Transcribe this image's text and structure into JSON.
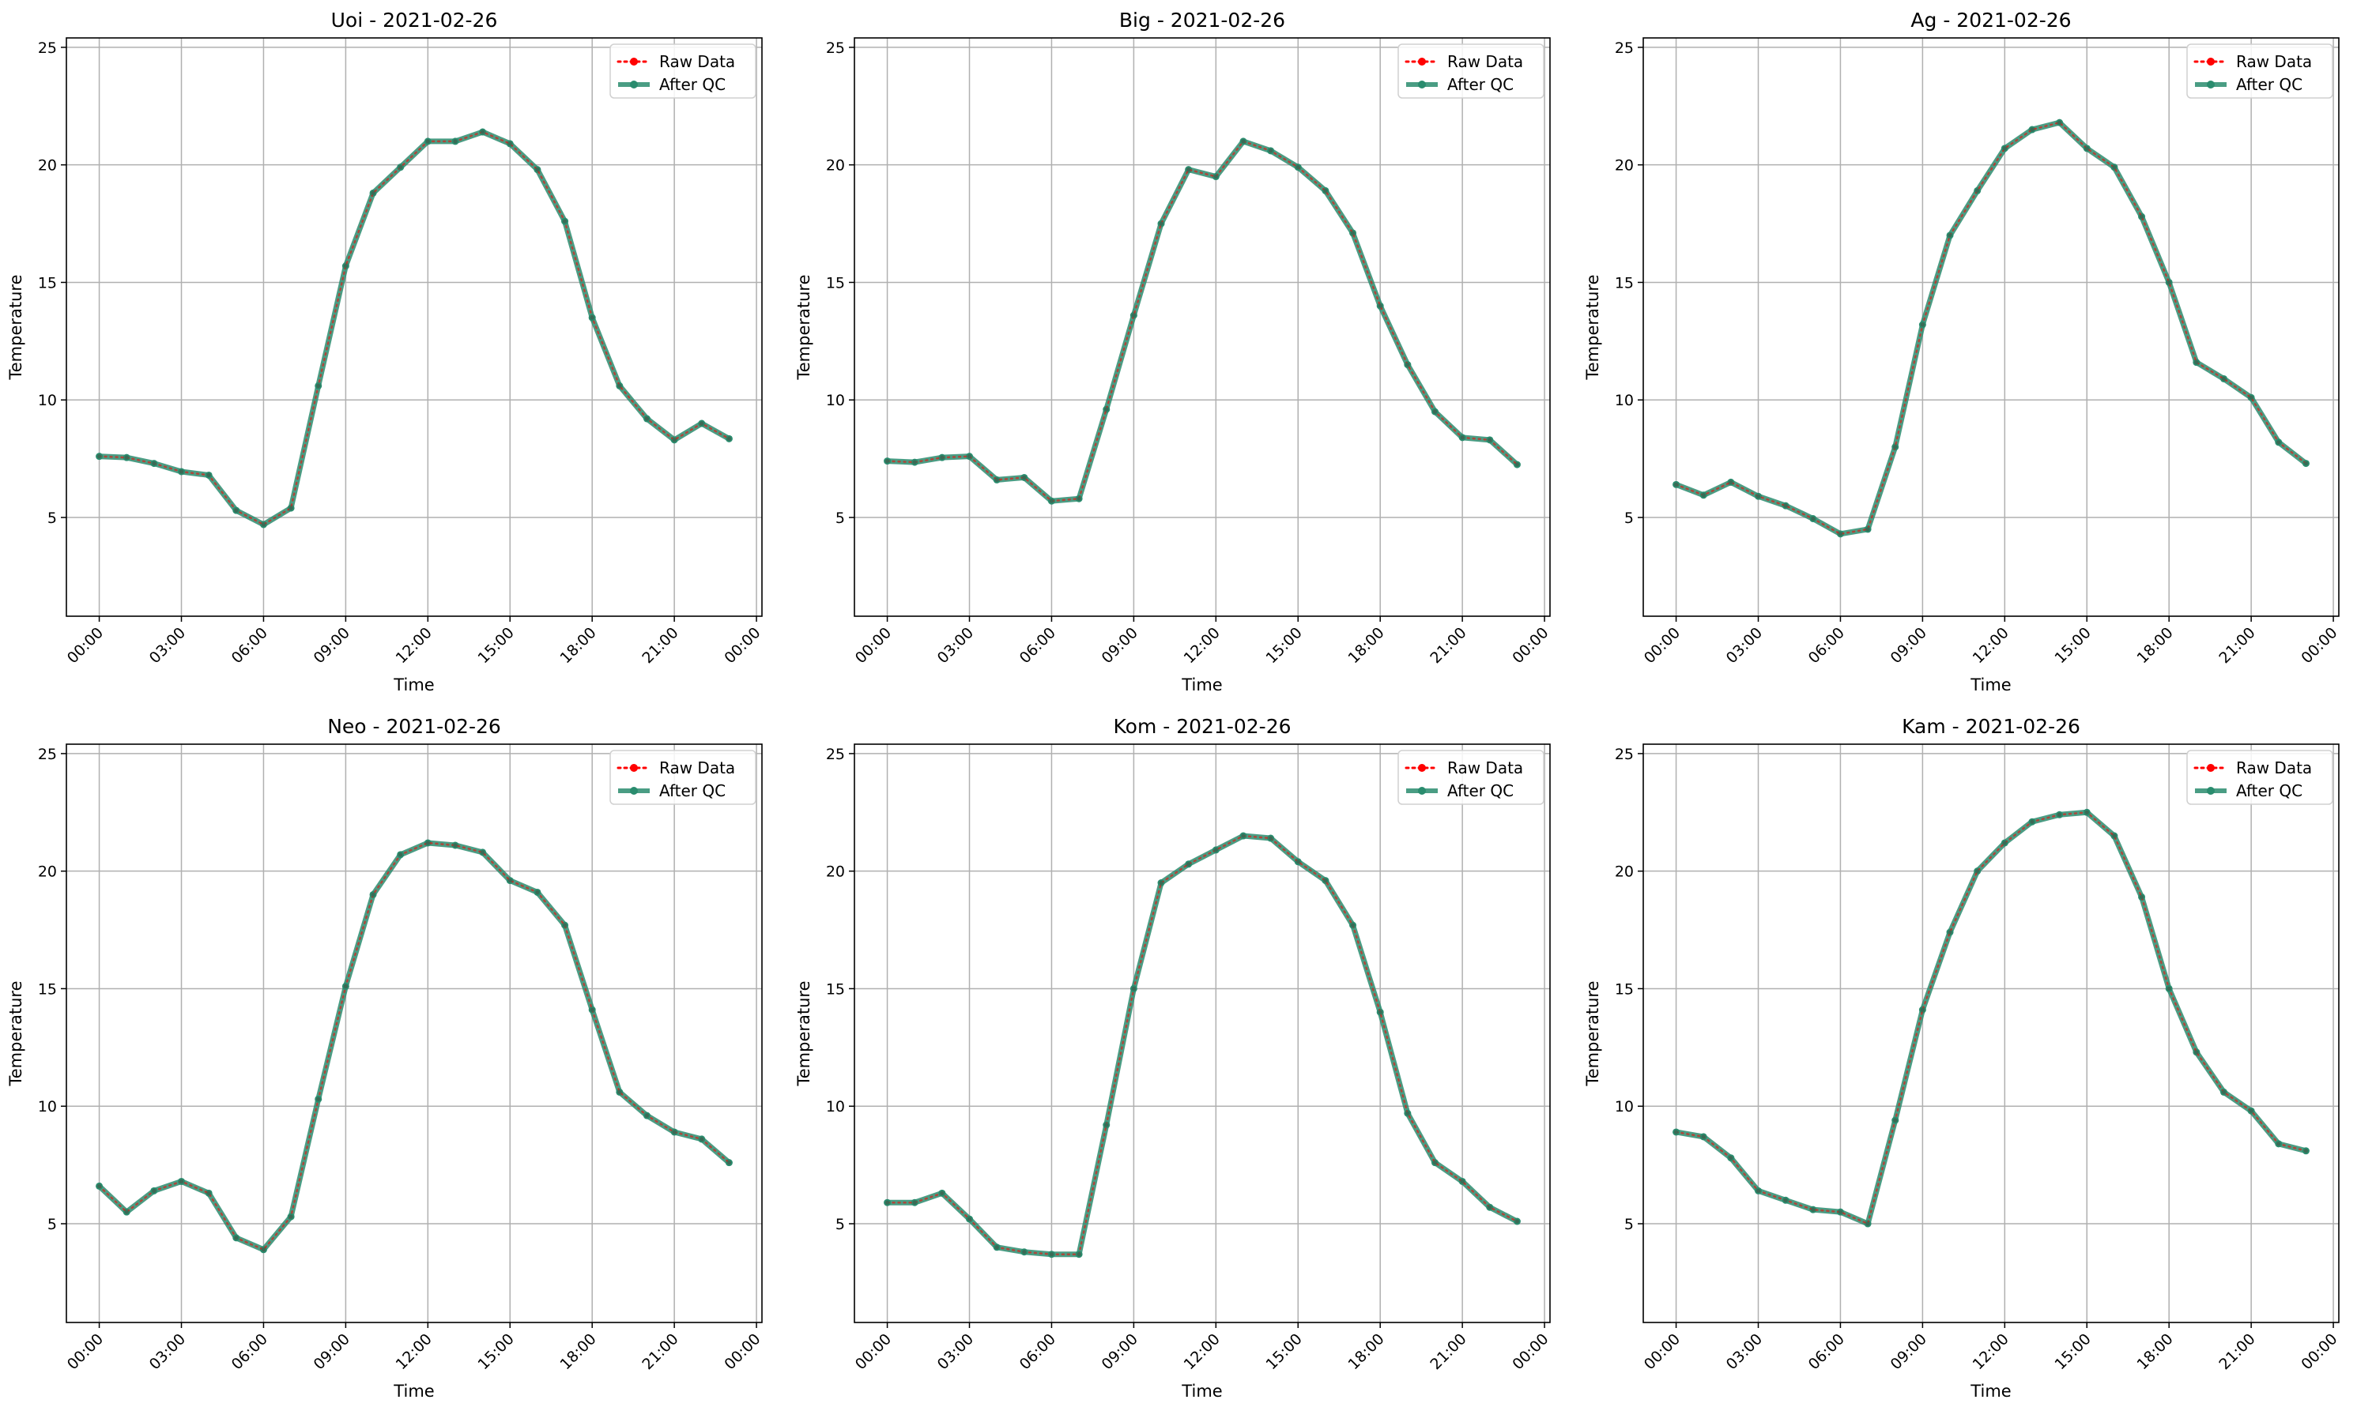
{
  "figure": {
    "legend_labels": [
      "Raw Data",
      "After QC"
    ],
    "colors": {
      "raw": "#ff0000",
      "qc": "#2a8c6e",
      "grid": "#b0b0b0"
    }
  },
  "chart_data": [
    {
      "type": "line",
      "title": "Uoi - 2021-02-26",
      "xlabel": "Time",
      "ylabel": "Temperature",
      "x_ticks": [
        "00:00",
        "03:00",
        "06:00",
        "09:00",
        "12:00",
        "15:00",
        "18:00",
        "21:00",
        "00:00"
      ],
      "y_ticks": [
        5,
        10,
        15,
        20,
        25
      ],
      "ylim": [
        0.8,
        25.4
      ],
      "xlim_hours": [
        -1.2,
        24.2
      ],
      "grid": true,
      "legend": "top-right",
      "hours": [
        0,
        1,
        2,
        3,
        4,
        5,
        6,
        7,
        8,
        9,
        10,
        11,
        12,
        13,
        14,
        15,
        16,
        17,
        18,
        19,
        20,
        21,
        22,
        23
      ],
      "series": [
        {
          "name": "Raw Data",
          "values": [
            7.6,
            7.55,
            7.3,
            6.95,
            6.8,
            5.3,
            4.7,
            5.4,
            10.6,
            15.7,
            18.8,
            19.9,
            21.0,
            21.0,
            21.4,
            20.9,
            19.8,
            17.6,
            13.5,
            10.6,
            9.2,
            8.3,
            9.0,
            8.35
          ]
        },
        {
          "name": "After QC",
          "values": [
            7.6,
            7.55,
            7.3,
            6.95,
            6.8,
            5.3,
            4.7,
            5.4,
            10.6,
            15.7,
            18.8,
            19.9,
            21.0,
            21.0,
            21.4,
            20.9,
            19.8,
            17.6,
            13.5,
            10.6,
            9.2,
            8.3,
            9.0,
            8.35
          ]
        }
      ]
    },
    {
      "type": "line",
      "title": "Big - 2021-02-26",
      "xlabel": "Time",
      "ylabel": "Temperature",
      "x_ticks": [
        "00:00",
        "03:00",
        "06:00",
        "09:00",
        "12:00",
        "15:00",
        "18:00",
        "21:00",
        "00:00"
      ],
      "y_ticks": [
        5,
        10,
        15,
        20,
        25
      ],
      "ylim": [
        0.8,
        25.4
      ],
      "xlim_hours": [
        -1.2,
        24.2
      ],
      "grid": true,
      "legend": "top-right",
      "hours": [
        0,
        1,
        2,
        3,
        4,
        5,
        6,
        7,
        8,
        9,
        10,
        11,
        12,
        13,
        14,
        15,
        16,
        17,
        18,
        19,
        20,
        21,
        22,
        23
      ],
      "series": [
        {
          "name": "Raw Data",
          "values": [
            7.4,
            7.35,
            7.55,
            7.6,
            6.6,
            6.7,
            5.7,
            5.8,
            9.6,
            13.6,
            17.5,
            19.8,
            19.5,
            21.0,
            20.6,
            19.9,
            18.9,
            17.1,
            14.0,
            11.5,
            9.5,
            8.4,
            8.3,
            7.25
          ]
        },
        {
          "name": "After QC",
          "values": [
            7.4,
            7.35,
            7.55,
            7.6,
            6.6,
            6.7,
            5.7,
            5.8,
            9.6,
            13.6,
            17.5,
            19.8,
            19.5,
            21.0,
            20.6,
            19.9,
            18.9,
            17.1,
            14.0,
            11.5,
            9.5,
            8.4,
            8.3,
            7.25
          ]
        }
      ]
    },
    {
      "type": "line",
      "title": "Ag - 2021-02-26",
      "xlabel": "Time",
      "ylabel": "Temperature",
      "x_ticks": [
        "00:00",
        "03:00",
        "06:00",
        "09:00",
        "12:00",
        "15:00",
        "18:00",
        "21:00",
        "00:00"
      ],
      "y_ticks": [
        5,
        10,
        15,
        20,
        25
      ],
      "ylim": [
        0.8,
        25.4
      ],
      "xlim_hours": [
        -1.2,
        24.2
      ],
      "grid": true,
      "legend": "top-right",
      "hours": [
        0,
        1,
        2,
        3,
        4,
        5,
        6,
        7,
        8,
        9,
        10,
        11,
        12,
        13,
        14,
        15,
        16,
        17,
        18,
        19,
        20,
        21,
        22,
        23
      ],
      "series": [
        {
          "name": "Raw Data",
          "values": [
            6.4,
            5.95,
            6.5,
            5.9,
            5.5,
            4.95,
            4.3,
            4.5,
            8.0,
            13.2,
            17.0,
            18.9,
            20.7,
            21.5,
            21.8,
            20.7,
            19.9,
            17.8,
            15.0,
            11.6,
            10.9,
            10.1,
            8.2,
            7.3
          ]
        },
        {
          "name": "After QC",
          "values": [
            6.4,
            5.95,
            6.5,
            5.9,
            5.5,
            4.95,
            4.3,
            4.5,
            8.0,
            13.2,
            17.0,
            18.9,
            20.7,
            21.5,
            21.8,
            20.7,
            19.9,
            17.8,
            15.0,
            11.6,
            10.9,
            10.1,
            8.2,
            7.3
          ]
        }
      ]
    },
    {
      "type": "line",
      "title": "Neo - 2021-02-26",
      "xlabel": "Time",
      "ylabel": "Temperature",
      "x_ticks": [
        "00:00",
        "03:00",
        "06:00",
        "09:00",
        "12:00",
        "15:00",
        "18:00",
        "21:00",
        "00:00"
      ],
      "y_ticks": [
        5,
        10,
        15,
        20,
        25
      ],
      "ylim": [
        0.8,
        25.4
      ],
      "xlim_hours": [
        -1.2,
        24.2
      ],
      "grid": true,
      "legend": "top-right",
      "hours": [
        0,
        1,
        2,
        3,
        4,
        5,
        6,
        7,
        8,
        9,
        10,
        11,
        12,
        13,
        14,
        15,
        16,
        17,
        18,
        19,
        20,
        21,
        22,
        23
      ],
      "series": [
        {
          "name": "Raw Data",
          "values": [
            6.6,
            5.5,
            6.4,
            6.8,
            6.3,
            4.4,
            3.9,
            5.3,
            10.3,
            15.1,
            19.0,
            20.7,
            21.2,
            21.1,
            20.8,
            19.6,
            19.1,
            17.7,
            14.1,
            10.6,
            9.6,
            8.9,
            8.6,
            7.6
          ]
        },
        {
          "name": "After QC",
          "values": [
            6.6,
            5.5,
            6.4,
            6.8,
            6.3,
            4.4,
            3.9,
            5.3,
            10.3,
            15.1,
            19.0,
            20.7,
            21.2,
            21.1,
            20.8,
            19.6,
            19.1,
            17.7,
            14.1,
            10.6,
            9.6,
            8.9,
            8.6,
            7.6
          ]
        }
      ]
    },
    {
      "type": "line",
      "title": "Kom - 2021-02-26",
      "xlabel": "Time",
      "ylabel": "Temperature",
      "x_ticks": [
        "00:00",
        "03:00",
        "06:00",
        "09:00",
        "12:00",
        "15:00",
        "18:00",
        "21:00",
        "00:00"
      ],
      "y_ticks": [
        5,
        10,
        15,
        20,
        25
      ],
      "ylim": [
        0.8,
        25.4
      ],
      "xlim_hours": [
        -1.2,
        24.2
      ],
      "grid": true,
      "legend": "top-right",
      "hours": [
        0,
        1,
        2,
        3,
        4,
        5,
        6,
        7,
        8,
        9,
        10,
        11,
        12,
        13,
        14,
        15,
        16,
        17,
        18,
        19,
        20,
        21,
        22,
        23
      ],
      "series": [
        {
          "name": "Raw Data",
          "values": [
            5.9,
            5.9,
            6.3,
            5.2,
            4.0,
            3.8,
            3.7,
            3.7,
            9.2,
            15.0,
            19.5,
            20.3,
            20.9,
            21.5,
            21.4,
            20.4,
            19.6,
            17.7,
            14.0,
            9.7,
            7.6,
            6.8,
            5.7,
            5.1
          ]
        },
        {
          "name": "After QC",
          "values": [
            5.9,
            5.9,
            6.3,
            5.2,
            4.0,
            3.8,
            3.7,
            3.7,
            9.2,
            15.0,
            19.5,
            20.3,
            20.9,
            21.5,
            21.4,
            20.4,
            19.6,
            17.7,
            14.0,
            9.7,
            7.6,
            6.8,
            5.7,
            5.1
          ]
        }
      ]
    },
    {
      "type": "line",
      "title": "Kam - 2021-02-26",
      "xlabel": "Time",
      "ylabel": "Temperature",
      "x_ticks": [
        "00:00",
        "03:00",
        "06:00",
        "09:00",
        "12:00",
        "15:00",
        "18:00",
        "21:00",
        "00:00"
      ],
      "y_ticks": [
        5,
        10,
        15,
        20,
        25
      ],
      "ylim": [
        0.8,
        25.4
      ],
      "xlim_hours": [
        -1.2,
        24.2
      ],
      "grid": true,
      "legend": "top-right",
      "hours": [
        0,
        1,
        2,
        3,
        4,
        5,
        6,
        7,
        8,
        9,
        10,
        11,
        12,
        13,
        14,
        15,
        16,
        17,
        18,
        19,
        20,
        21,
        22,
        23
      ],
      "series": [
        {
          "name": "Raw Data",
          "values": [
            8.9,
            8.7,
            7.8,
            6.4,
            6.0,
            5.6,
            5.5,
            5.0,
            9.4,
            14.1,
            17.4,
            20.0,
            21.2,
            22.1,
            22.4,
            22.5,
            21.5,
            18.9,
            15.0,
            12.3,
            10.6,
            9.8,
            8.4,
            8.1
          ]
        },
        {
          "name": "After QC",
          "values": [
            8.9,
            8.7,
            7.8,
            6.4,
            6.0,
            5.6,
            5.5,
            5.0,
            9.4,
            14.1,
            17.4,
            20.0,
            21.2,
            22.1,
            22.4,
            22.5,
            21.5,
            18.9,
            15.0,
            12.3,
            10.6,
            9.8,
            8.4,
            8.1
          ]
        }
      ]
    }
  ]
}
